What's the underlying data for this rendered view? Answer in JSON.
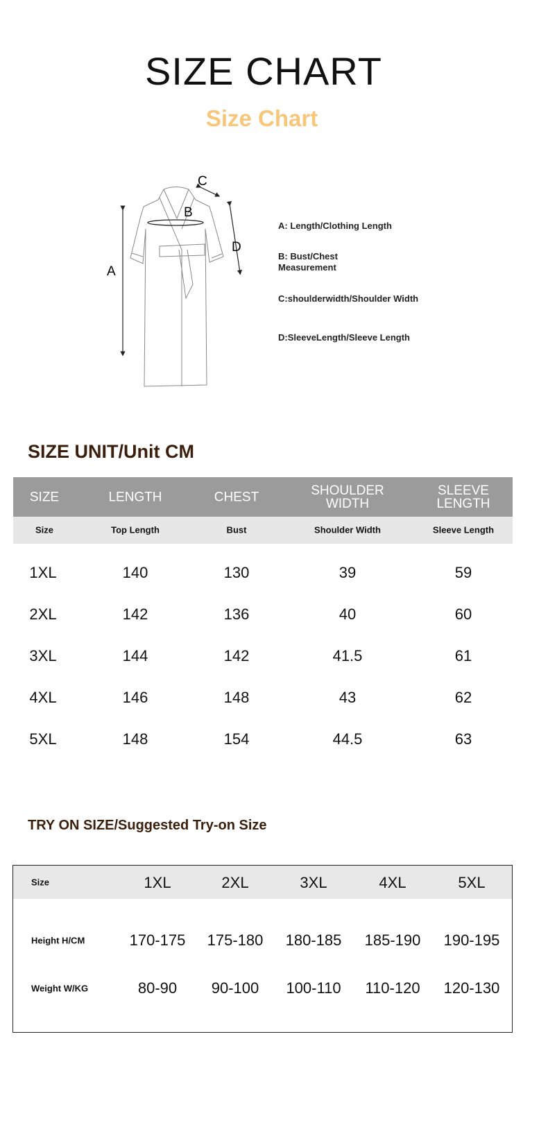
{
  "header": {
    "title": "SIZE CHART",
    "subtitle": "Size Chart"
  },
  "diagram": {
    "labels": {
      "a": "A",
      "b": "B",
      "c": "C",
      "d": "D"
    },
    "legend": [
      "A: Length/Clothing Length",
      "B: Bust/Chest Measurement",
      "C:shoulderwidth/Shoulder Width",
      "D:SleeveLength/Sleeve Length"
    ]
  },
  "size_table": {
    "section_title": "SIZE UNIT/Unit CM",
    "headers": [
      "SIZE",
      "LENGTH",
      "CHEST",
      "SHOULDER WIDTH",
      "SLEEVE LENGTH"
    ],
    "subheaders": [
      "Size",
      "Top Length",
      "Bust",
      "Shoulder Width",
      "Sleeve Length"
    ],
    "rows": [
      [
        "1XL",
        "140",
        "130",
        "39",
        "59"
      ],
      [
        "2XL",
        "142",
        "136",
        "40",
        "60"
      ],
      [
        "3XL",
        "144",
        "142",
        "41.5",
        "61"
      ],
      [
        "4XL",
        "146",
        "148",
        "43",
        "62"
      ],
      [
        "5XL",
        "148",
        "154",
        "44.5",
        "63"
      ]
    ]
  },
  "tryon_table": {
    "section_title": "TRY ON SIZE/Suggested Try-on Size",
    "header_label": "Size",
    "sizes": [
      "1XL",
      "2XL",
      "3XL",
      "4XL",
      "5XL"
    ],
    "rows": [
      {
        "label": "Height H/CM",
        "values": [
          "170-175",
          "175-180",
          "180-185",
          "185-190",
          "190-195"
        ]
      },
      {
        "label": "Weight W/KG",
        "values": [
          "80-90",
          "90-100",
          "100-110",
          "110-120",
          "120-130"
        ]
      }
    ]
  },
  "colors": {
    "subtitle": "#f7c67a",
    "section_title": "#3b1f0c",
    "header_bg": "#9b9b9b",
    "subheader_bg": "#e7e7e7"
  }
}
